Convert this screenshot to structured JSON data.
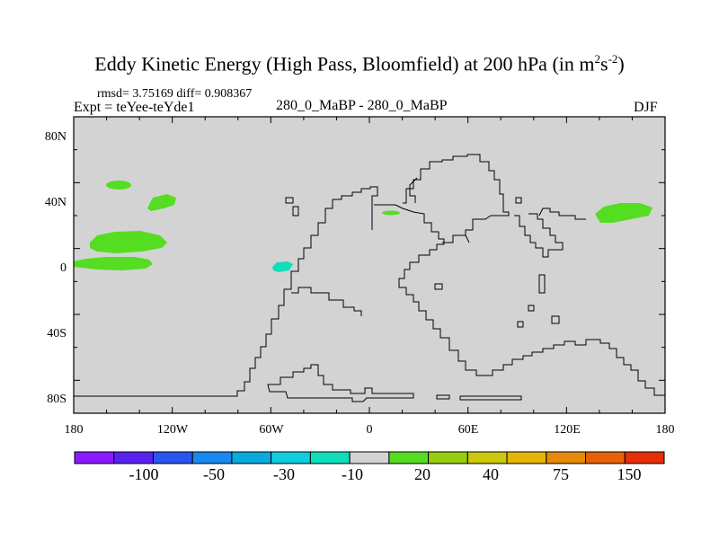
{
  "title": {
    "main": "Eddy Kinetic Energy (High Pass, Bloomfield) at 200 hPa (in m",
    "sup1": "2",
    "mid": "s",
    "sup2": "-2",
    "end": ")"
  },
  "stats": "rmsd= 3.75169 diff= 0.908367",
  "expt": "Expt = teYee-teYde1",
  "subtitle": "280_0_MaBP - 280_0_MaBP",
  "season": "DJF",
  "map": {
    "lat_ticks": [
      "80N",
      "40N",
      "0",
      "40S",
      "80S"
    ],
    "lon_ticks": [
      "180",
      "120W",
      "60W",
      "0",
      "60E",
      "120E",
      "180"
    ],
    "background_color": "#d3d3d3",
    "positive_anomaly_color": "#55dd22",
    "negative_anomaly_color": "#11ddbb"
  },
  "colorbar": {
    "labels": [
      "-100",
      "-50",
      "-30",
      "-10",
      "20",
      "40",
      "75",
      "150"
    ],
    "colors": [
      "#8a1aff",
      "#5a22ee",
      "#2a55ee",
      "#1a88ee",
      "#0aaadd",
      "#11ccdd",
      "#11ddbb",
      "#d3d3d3",
      "#55dd22",
      "#99cc11",
      "#ccc811",
      "#e5b60a",
      "#e58a0a",
      "#e5620a",
      "#e52e0a"
    ]
  }
}
